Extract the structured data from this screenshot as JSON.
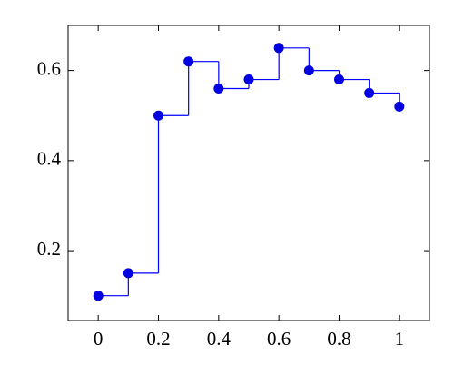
{
  "chart_data": {
    "type": "step",
    "x": [
      0,
      0.1,
      0.2,
      0.3,
      0.4,
      0.5,
      0.6,
      0.7,
      0.8,
      0.9,
      1
    ],
    "series": [
      {
        "color": "#0000ff",
        "values": [
          0.1,
          0.15,
          0.5,
          0.62,
          0.56,
          0.58,
          0.65,
          0.6,
          0.58,
          0.55,
          0.52
        ]
      }
    ],
    "xlim": [
      -0.1,
      1.1
    ],
    "xticks": [
      0,
      0.2,
      0.4,
      0.6,
      0.8,
      1
    ],
    "ylim": [
      0.045,
      0.7
    ],
    "yticks": [
      0.2,
      0.4,
      0.6
    ],
    "grid": false
  }
}
